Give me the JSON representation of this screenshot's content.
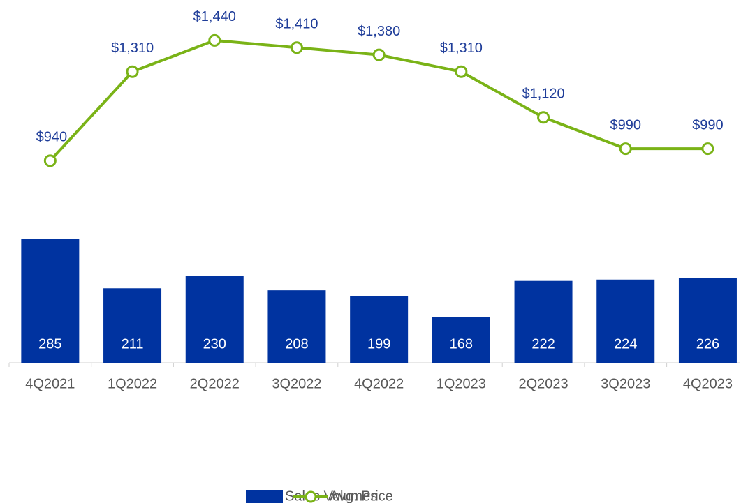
{
  "chart_data": {
    "type": "bar-line",
    "categories": [
      "4Q2021",
      "1Q2022",
      "2Q2022",
      "3Q2022",
      "4Q2022",
      "1Q2023",
      "2Q2023",
      "3Q2023",
      "4Q2023"
    ],
    "series": [
      {
        "name": "Sales Volumes",
        "type": "bar",
        "color": "#0033a0",
        "values": [
          285,
          211,
          230,
          208,
          199,
          168,
          222,
          224,
          226
        ]
      },
      {
        "name": "Avg. Price",
        "type": "line",
        "axis": "y2",
        "color": "#7ab317",
        "values": [
          940,
          1310,
          1440,
          1410,
          1380,
          1310,
          1120,
          990,
          990
        ],
        "value_labels": [
          "$940",
          "$1,310",
          "$1,440",
          "$1,410",
          "$1,380",
          "$1,310",
          "$1,120",
          "$990",
          "$990"
        ]
      }
    ],
    "ylim": [
      100,
      620
    ],
    "y2lim": [
      100,
      1550
    ],
    "legend": "bottom"
  }
}
